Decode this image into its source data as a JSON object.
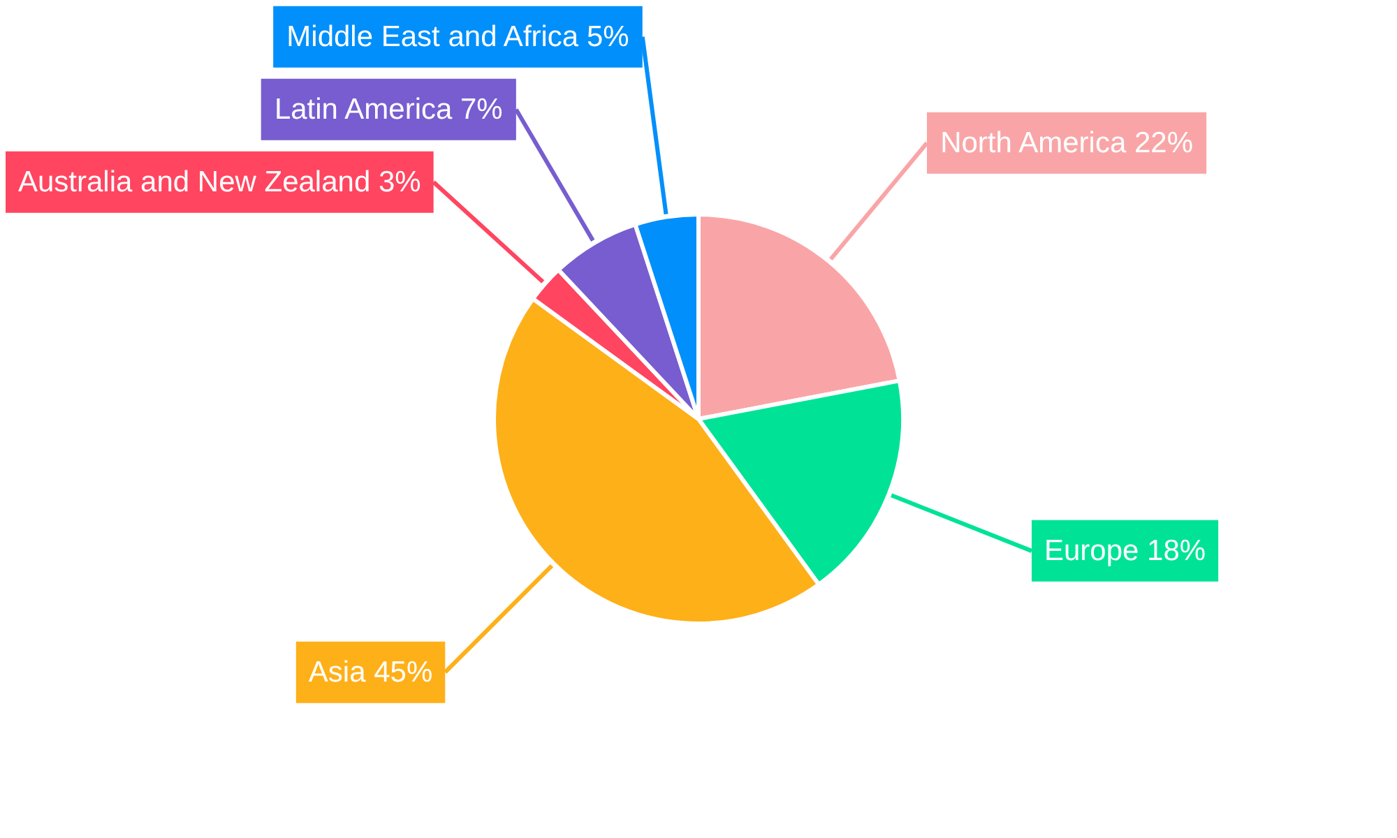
{
  "chart_data": {
    "type": "pie",
    "categories": [
      "North America",
      "Europe",
      "Asia",
      "Australia and New Zealand",
      "Latin America",
      "Middle East and Africa"
    ],
    "values": [
      22,
      18,
      45,
      3,
      7,
      5
    ],
    "colors": [
      "#f9a5a7",
      "#00e396",
      "#feb019",
      "#ff4560",
      "#775dd0",
      "#008ffb"
    ],
    "value_labels": [
      "22%",
      "18%",
      "45%",
      "3%",
      "7%",
      "5%"
    ],
    "legend": false
  }
}
